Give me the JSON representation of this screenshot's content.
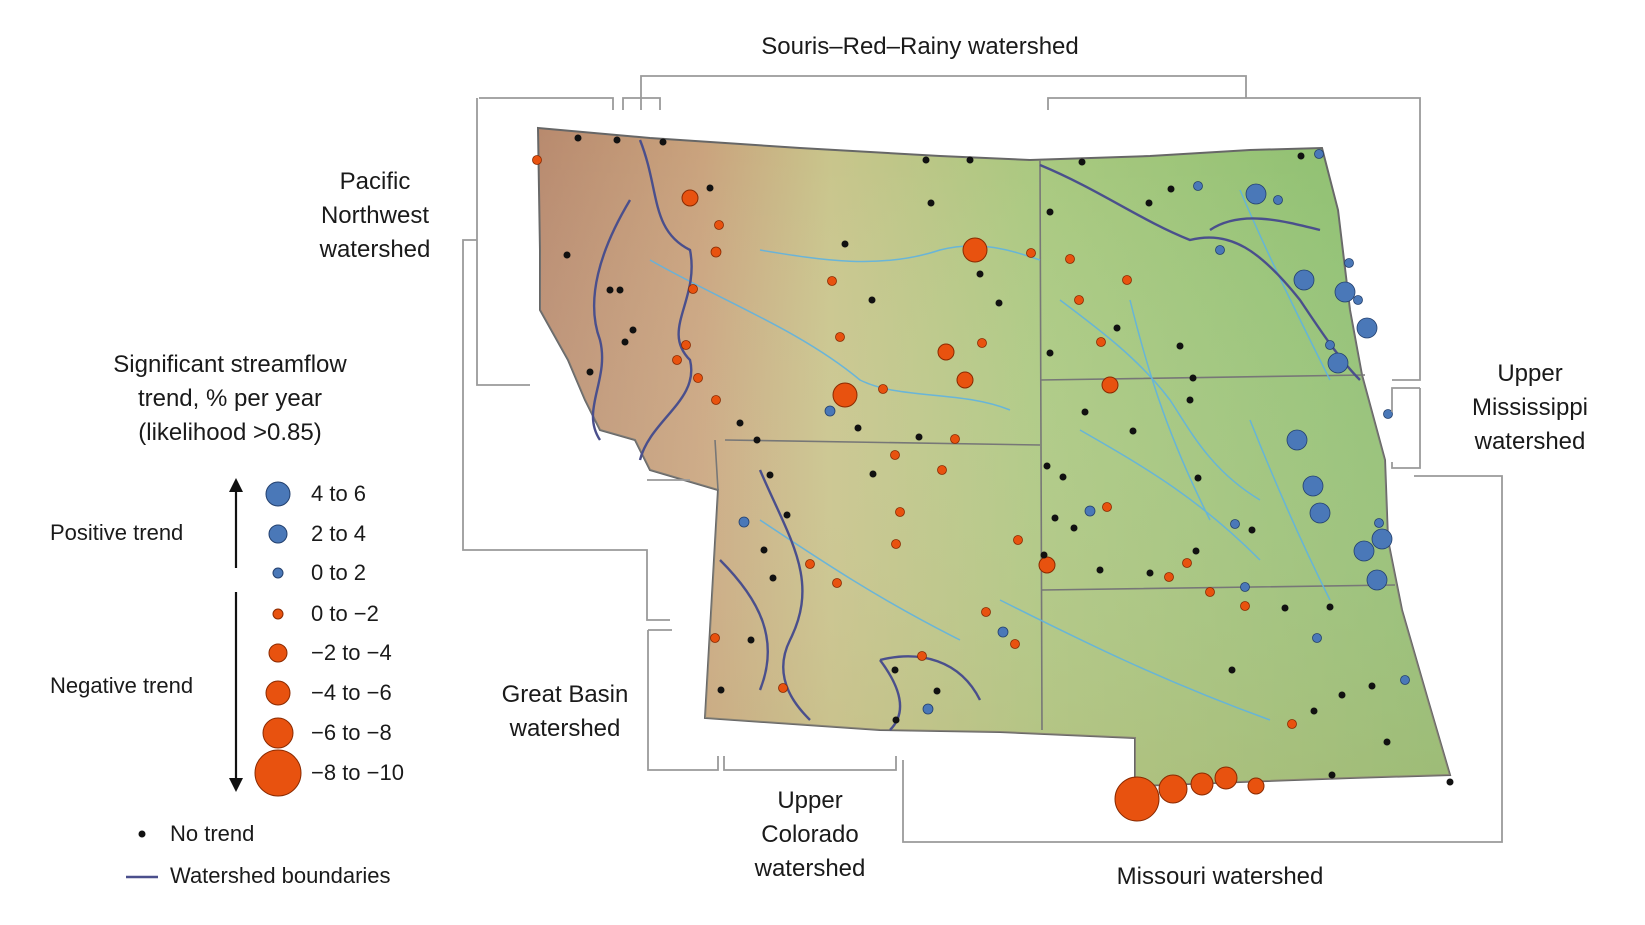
{
  "labels": {
    "souris": "Souris–Red–Rainy watershed",
    "pacific": [
      "Pacific",
      "Northwest",
      "watershed"
    ],
    "upper_miss": [
      "Upper",
      "Mississippi",
      "watershed"
    ],
    "great_basin": [
      "Great Basin",
      "watershed"
    ],
    "upper_colorado": [
      "Upper",
      "Colorado",
      "watershed"
    ],
    "missouri": "Missouri watershed"
  },
  "legend": {
    "title": [
      "Significant streamflow",
      "trend, % per year",
      "(likelihood >0.85)"
    ],
    "positive_trend": "Positive trend",
    "negative_trend": "Negative trend",
    "classes": [
      {
        "label": "4 to 6",
        "sign": "positive"
      },
      {
        "label": "2 to 4",
        "sign": "positive"
      },
      {
        "label": "0 to 2",
        "sign": "positive"
      },
      {
        "label": "0 to −2",
        "sign": "negative"
      },
      {
        "label": "−2 to −4",
        "sign": "negative"
      },
      {
        "label": "−4 to −6",
        "sign": "negative"
      },
      {
        "label": "−6 to −8",
        "sign": "negative"
      },
      {
        "label": "−8 to −10",
        "sign": "negative"
      }
    ],
    "no_trend": "No trend",
    "boundaries": "Watershed boundaries"
  },
  "colors": {
    "positive": "#4a78b8",
    "negative": "#e8520f",
    "no_trend": "#111111",
    "boundary": "#4a4f8c",
    "terrain_low": "#8fbf72",
    "terrain_mid": "#c9c98a",
    "terrain_high": "#c49a7a",
    "river": "#5fb3e0",
    "bracket": "#9a9a9a"
  }
}
